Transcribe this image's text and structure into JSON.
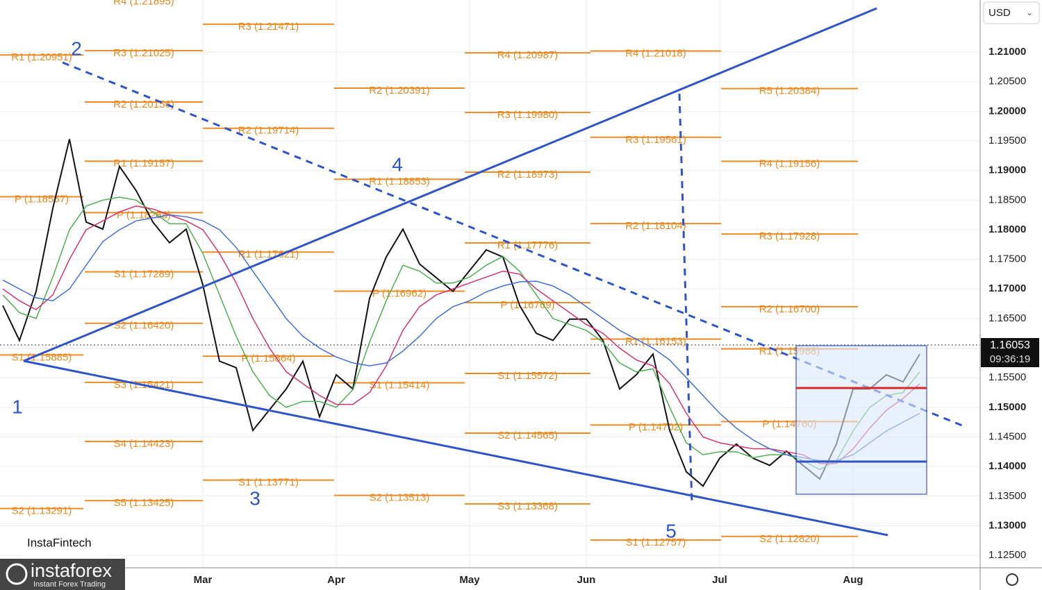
{
  "chart_data": {
    "type": "line",
    "currency": "USD",
    "categories": [
      null,
      null,
      null,
      null,
      null,
      null,
      null,
      null,
      null,
      null,
      null,
      null,
      "Mar",
      null,
      null,
      null,
      null,
      null,
      null,
      null,
      "Apr",
      null,
      null,
      null,
      null,
      null,
      null,
      null,
      "May",
      null,
      null,
      null,
      null,
      null,
      null,
      "Jun",
      null,
      null,
      null,
      null,
      null,
      null,
      null,
      "Jul",
      null,
      null,
      null,
      null,
      null,
      null,
      null,
      "Aug",
      null,
      null,
      null,
      null
    ],
    "series": [
      {
        "color": "#111111",
        "values": [
          1.1672,
          1.1613,
          1.1696,
          1.1836,
          1.1953,
          1.1813,
          1.1801,
          1.1907,
          1.1866,
          1.1813,
          1.1778,
          1.1801,
          1.1707,
          1.1578,
          1.1567,
          1.1461,
          1.1496,
          1.1531,
          1.1578,
          1.1484,
          1.1555,
          1.1531,
          1.1684,
          1.1754,
          1.1801,
          1.1742,
          1.1719,
          1.1696,
          1.1731,
          1.1766,
          1.1754,
          1.1672,
          1.1625,
          1.1613,
          1.1649,
          1.1649,
          1.1613,
          1.1531,
          1.1555,
          1.159,
          1.1461,
          1.1391,
          1.1367,
          1.1414,
          1.1438,
          1.1414,
          1.1402,
          1.1426,
          1.1402,
          1.1379,
          1.1438,
          1.1531,
          1.1531,
          1.1555,
          1.1543,
          1.159
        ]
      },
      {
        "color": "#4caf50",
        "values": [
          1.169,
          1.166,
          1.165,
          1.172,
          1.18,
          1.184,
          1.185,
          1.1855,
          1.185,
          1.183,
          1.181,
          1.181,
          1.176,
          1.169,
          1.162,
          1.156,
          1.152,
          1.15,
          1.151,
          1.151,
          1.15,
          1.153,
          1.161,
          1.168,
          1.174,
          1.173,
          1.171,
          1.171,
          1.172,
          1.174,
          1.1755,
          1.173,
          1.169,
          1.165,
          1.164,
          1.163,
          1.161,
          1.1575,
          1.156,
          1.1565,
          1.15,
          1.144,
          1.142,
          1.1425,
          1.1425,
          1.1415,
          1.142,
          1.142,
          1.141,
          1.1395,
          1.141,
          1.146,
          1.15,
          1.152,
          1.1525,
          1.156
        ]
      },
      {
        "color": "#d6336c",
        "values": [
          1.17,
          1.168,
          1.1665,
          1.169,
          1.175,
          1.18,
          1.1815,
          1.183,
          1.184,
          1.1835,
          1.1825,
          1.1815,
          1.18,
          1.176,
          1.171,
          1.165,
          1.16,
          1.156,
          1.154,
          1.152,
          1.1505,
          1.1505,
          1.1525,
          1.157,
          1.163,
          1.167,
          1.169,
          1.17,
          1.171,
          1.172,
          1.173,
          1.1725,
          1.17,
          1.168,
          1.166,
          1.164,
          1.1625,
          1.16,
          1.158,
          1.157,
          1.154,
          1.149,
          1.145,
          1.144,
          1.1435,
          1.143,
          1.143,
          1.1425,
          1.142,
          1.1405,
          1.1405,
          1.143,
          1.1465,
          1.1495,
          1.1515,
          1.154
        ]
      },
      {
        "color": "#3f6fd8",
        "values": [
          1.1715,
          1.17,
          1.1685,
          1.168,
          1.17,
          1.174,
          1.178,
          1.18,
          1.1815,
          1.182,
          1.1825,
          1.1822,
          1.1815,
          1.18,
          1.177,
          1.173,
          1.169,
          1.165,
          1.162,
          1.16,
          1.1585,
          1.1575,
          1.157,
          1.1575,
          1.1595,
          1.162,
          1.165,
          1.167,
          1.168,
          1.1695,
          1.1705,
          1.1712,
          1.1713,
          1.1705,
          1.169,
          1.167,
          1.165,
          1.163,
          1.1615,
          1.16,
          1.158,
          1.155,
          1.152,
          1.149,
          1.1465,
          1.1445,
          1.143,
          1.142,
          1.1415,
          1.141,
          1.141,
          1.142,
          1.144,
          1.146,
          1.1475,
          1.149
        ]
      }
    ],
    "ylim": [
      1.1229,
      1.2188
    ],
    "yticks": [
      {
        "value": 1.125,
        "label": "1.12500"
      },
      {
        "value": 1.13,
        "label": "1.13000"
      },
      {
        "value": 1.135,
        "label": "1.13500"
      },
      {
        "value": 1.14,
        "label": "1.14000"
      },
      {
        "value": 1.145,
        "label": "1.14500"
      },
      {
        "value": 1.15,
        "label": "1.15000"
      },
      {
        "value": 1.155,
        "label": "1.15500"
      },
      {
        "value": 1.16,
        "label": "1.16000"
      },
      {
        "value": 1.165,
        "label": "1.16500"
      },
      {
        "value": 1.17,
        "label": "1.17000"
      },
      {
        "value": 1.175,
        "label": "1.17500"
      },
      {
        "value": 1.18,
        "label": "1.18000"
      },
      {
        "value": 1.185,
        "label": "1.18500"
      },
      {
        "value": 1.19,
        "label": "1.19000"
      },
      {
        "value": 1.195,
        "label": "1.19500"
      },
      {
        "value": 1.2,
        "label": "1.20000"
      },
      {
        "value": 1.205,
        "label": "1.20500"
      },
      {
        "value": 1.21,
        "label": "1.21000"
      }
    ],
    "grid": true,
    "last_price": 1.16053,
    "last_time": "09:36:19",
    "level_color": "#f08a24",
    "pivot_periods": [
      [
        {
          "label": "R1 (1.20951)",
          "value": 1.20951
        },
        {
          "label": "P (1.18557)",
          "value": 1.18557
        },
        {
          "label": "S1 (1.15885)",
          "value": 1.15885
        },
        {
          "label": "S2 (1.13291)",
          "value": 1.13291
        }
      ],
      [
        {
          "label": "R4 (1.21895)",
          "value": 1.21895
        },
        {
          "label": "R3 (1.21025)",
          "value": 1.21025
        },
        {
          "label": "R2 (1.20156)",
          "value": 1.20156
        },
        {
          "label": "R1 (1.19157)",
          "value": 1.19157
        },
        {
          "label": "P (1.18288)",
          "value": 1.18288
        },
        {
          "label": "S1 (1.17289)",
          "value": 1.17289
        },
        {
          "label": "S2 (1.16420)",
          "value": 1.1642
        },
        {
          "label": "S3 (1.15421)",
          "value": 1.15421
        },
        {
          "label": "S4 (1.14423)",
          "value": 1.14423
        },
        {
          "label": "S5 (1.13425)",
          "value": 1.13425
        }
      ],
      [
        {
          "label": "R3 (1.21471)",
          "value": 1.21471
        },
        {
          "label": "R2 (1.19714)",
          "value": 1.19714
        },
        {
          "label": "R1 (1.17621)",
          "value": 1.17621
        },
        {
          "label": "P (1.15864)",
          "value": 1.15864
        },
        {
          "label": "S1 (1.13771)",
          "value": 1.13771
        }
      ],
      [
        {
          "label": "R2 (1.20391)",
          "value": 1.20391
        },
        {
          "label": "R1 (1.18853)",
          "value": 1.18853
        },
        {
          "label": "P (1.16962)",
          "value": 1.16962
        },
        {
          "label": "S1 (1.15414)",
          "value": 1.15414
        },
        {
          "label": "S2 (1.13513)",
          "value": 1.13513
        }
      ],
      [
        {
          "label": "R4 (1.20987)",
          "value": 1.20987
        },
        {
          "label": "R3 (1.19980)",
          "value": 1.1998
        },
        {
          "label": "R2 (1.18973)",
          "value": 1.18973
        },
        {
          "label": "R1 (1.17776)",
          "value": 1.17776
        },
        {
          "label": "P (1.16769)",
          "value": 1.16769
        },
        {
          "label": "S1 (1.15572)",
          "value": 1.15572
        },
        {
          "label": "S2 (1.14565)",
          "value": 1.14565
        },
        {
          "label": "S3 (1.13368)",
          "value": 1.13368
        }
      ],
      [
        {
          "label": "R4 (1.21018)",
          "value": 1.21018
        },
        {
          "label": "R3 (1.19561)",
          "value": 1.19561
        },
        {
          "label": "R2 (1.18104)",
          "value": 1.18104
        },
        {
          "label": "R1 (1.16153)",
          "value": 1.16153
        },
        {
          "label": "P (1.14702)",
          "value": 1.14702
        },
        {
          "label": "S1 (1.12757)",
          "value": 1.12757
        }
      ],
      [
        {
          "label": "R5 (1.20384)",
          "value": 1.20384
        },
        {
          "label": "R4 (1.19156)",
          "value": 1.19156
        },
        {
          "label": "R3 (1.17928)",
          "value": 1.17928
        },
        {
          "label": "R2 (1.16700)",
          "value": 1.167
        },
        {
          "label": "R1 (1.15988)",
          "value": 1.15988
        },
        {
          "label": "P (1.14760)",
          "value": 1.1476
        },
        {
          "label": "S2 (1.12820)",
          "value": 1.1282
        }
      ]
    ],
    "wave_labels": [
      "1",
      "2",
      "3",
      "4",
      "5"
    ]
  },
  "branding": {
    "name": "InstaFintech",
    "logo": "instaforex",
    "tagline": "Instant Forex Trading"
  }
}
